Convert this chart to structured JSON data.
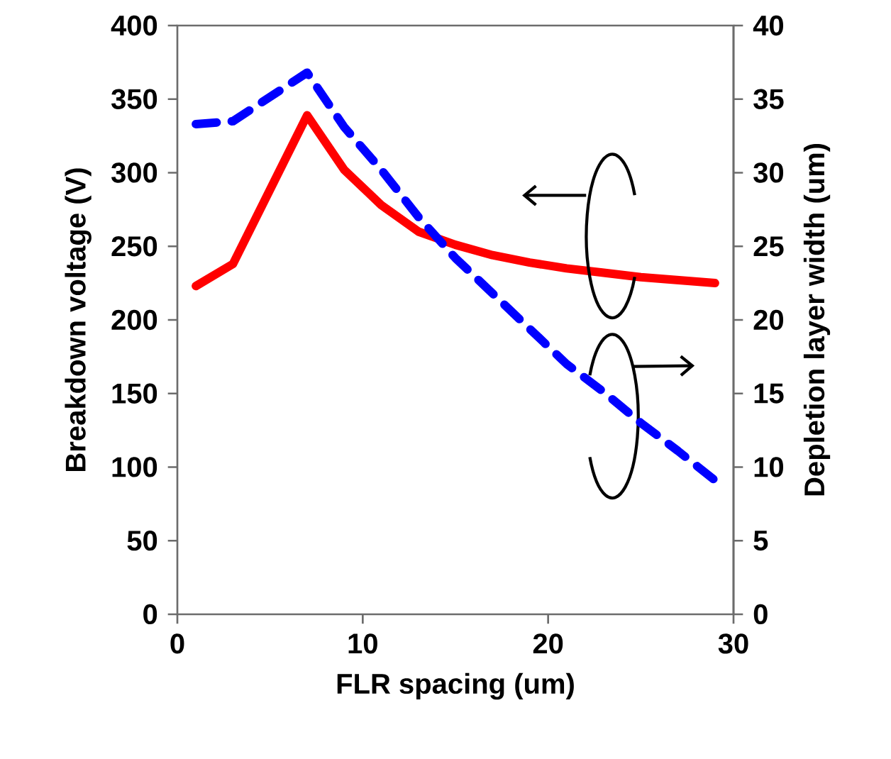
{
  "chart_data": {
    "type": "line",
    "xlabel": "FLR spacing (um)",
    "ylabel": "Breakdown voltage (V)",
    "y2label": "Depletion layer width (um)",
    "x": [
      1,
      3,
      7,
      9,
      11,
      13,
      15,
      17,
      19,
      21,
      23,
      25,
      27,
      29
    ],
    "series": [
      {
        "color": "#ff0000",
        "line_style": "solid",
        "values": [
          223,
          238,
          339,
          302,
          278,
          260,
          251,
          244,
          239,
          235,
          232,
          229,
          227,
          225
        ]
      },
      {
        "color": "#0000ff",
        "line_style": "dashed",
        "axis": "y2",
        "values": [
          33.3,
          33.5,
          36.8,
          33.1,
          30.2,
          27.0,
          24.2,
          21.8,
          19.4,
          17.0,
          15.1,
          13.0,
          11.1,
          9.1
        ]
      }
    ],
    "xlim": [
      0,
      30
    ],
    "ylim": [
      0,
      400
    ],
    "y2lim": [
      0,
      40
    ],
    "xticks": [
      0,
      10,
      20,
      30
    ],
    "yticks": [
      0,
      50,
      100,
      150,
      200,
      250,
      300,
      350,
      400
    ],
    "y2ticks": [
      0,
      5,
      10,
      15,
      20,
      25,
      30,
      35,
      40
    ]
  }
}
